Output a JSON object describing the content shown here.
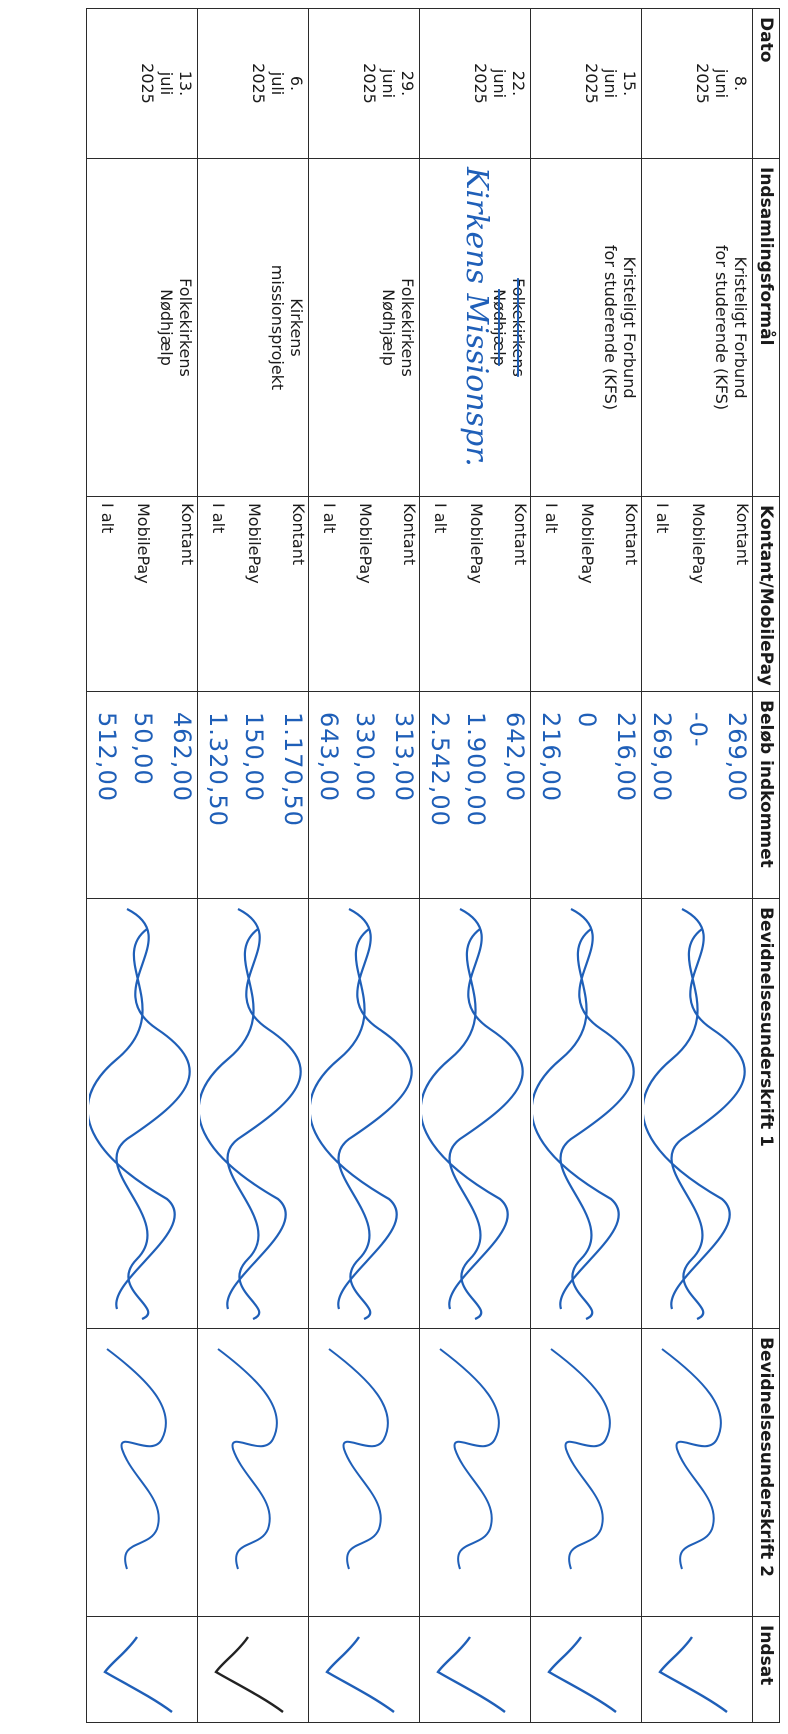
{
  "headers": {
    "dato": "Dato",
    "formaal": "Indsamlingsformål",
    "kontant_mobilepay": "Kontant/MobilePay",
    "beloeb": "Beløb indkommet",
    "bevidnelse1": "Bevidnelsesunderskrift 1",
    "bevidnelse2": "Bevidnelsesunderskrift 2",
    "indsat": "Indsat"
  },
  "payment_types": [
    "Kontant",
    "MobilePay",
    "I alt"
  ],
  "colors": {
    "ink": "#1f5fb8",
    "rule": "#2b2b2b"
  },
  "rows": [
    {
      "date": [
        "8.",
        "juni",
        "2025"
      ],
      "purpose": [
        "Kristeligt Forbund",
        "for studerende (KFS)"
      ],
      "amounts": [
        "269,00",
        "-0-",
        "269,00"
      ]
    },
    {
      "date": [
        "15.",
        "juni",
        "2025"
      ],
      "purpose": [
        "Kristeligt Forbund",
        "for studerende (KFS)"
      ],
      "amounts": [
        "216,00",
        "0",
        "216,00"
      ]
    },
    {
      "date": [
        "22.",
        "juni",
        "2025"
      ],
      "purpose": [
        "Folkekirkens",
        "Nødhjælp"
      ],
      "purpose_handwritten": "Kirkens Missionspr.",
      "amounts": [
        "642,00",
        "1.900,00",
        "2.542,00"
      ]
    },
    {
      "date": [
        "29.",
        "juni",
        "2025"
      ],
      "purpose": [
        "Folkekirkens",
        "Nødhjælp"
      ],
      "amounts": [
        "313,00",
        "330,00",
        "643,00"
      ]
    },
    {
      "date": [
        "6.",
        "juli",
        "2025"
      ],
      "purpose": [
        "Kirkens",
        "missionsprojekt"
      ],
      "amounts": [
        "1.170,50",
        "150,00",
        "1.320,50"
      ]
    },
    {
      "date": [
        "13.",
        "juli",
        "2025"
      ],
      "purpose": [
        "Folkekirkens",
        "Nødhjælp"
      ],
      "amounts": [
        "462,00",
        "50,00",
        "512,00"
      ]
    }
  ]
}
